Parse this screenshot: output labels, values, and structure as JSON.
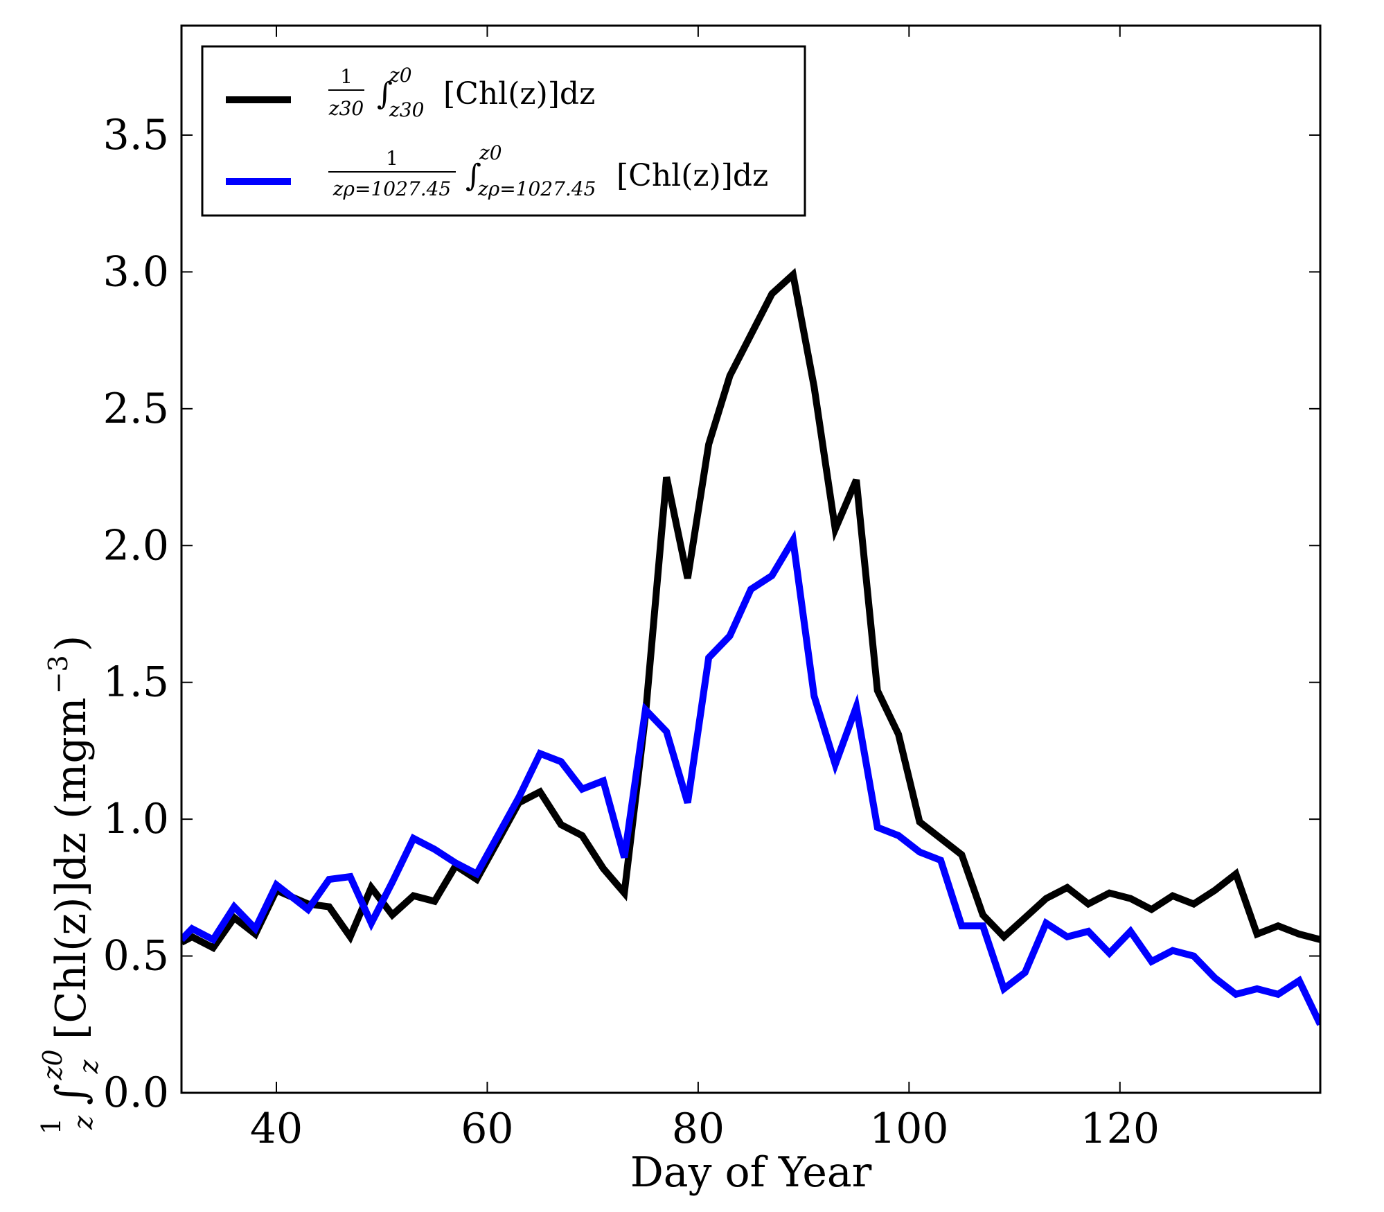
{
  "chart_data": {
    "type": "line",
    "xlabel": "Day of Year",
    "ylabel": {
      "frac_num": "1",
      "frac_den": "z",
      "integral": "∫",
      "upper_limit": "z0",
      "lower_limit": "z",
      "body": "[Chl(z)]dz (mgm",
      "superscript": "−3",
      "close": ")"
    },
    "xlim": [
      31,
      139
    ],
    "ylim": [
      0.0,
      3.9
    ],
    "xticks": [
      "40",
      "60",
      "80",
      "100",
      "120"
    ],
    "xtick_values": [
      40,
      60,
      80,
      100,
      120
    ],
    "yticks": [
      "0.0",
      "0.5",
      "1.0",
      "1.5",
      "2.0",
      "2.5",
      "3.0",
      "3.5"
    ],
    "ytick_values": [
      0.0,
      0.5,
      1.0,
      1.5,
      2.0,
      2.5,
      3.0,
      3.5
    ],
    "grid": false,
    "legend_position": "top-left",
    "series": [
      {
        "name": "1/z30 ∫z30^z0 [Chl(z)]dz",
        "legend": {
          "num": "1",
          "den": "z30",
          "upper": "z0",
          "lower": "z30",
          "body": "[Chl(z)]dz"
        },
        "color": "#000000",
        "x": [
          31,
          32,
          34,
          36,
          38,
          40,
          43,
          45,
          47,
          49,
          51,
          53,
          55,
          57,
          59,
          61,
          63,
          65,
          67,
          69,
          71,
          73,
          75,
          77,
          79,
          81,
          83,
          85,
          87,
          89,
          91,
          93,
          95,
          97,
          99,
          101,
          103,
          105,
          107,
          109,
          111,
          113,
          115,
          117,
          119,
          121,
          123,
          125,
          127,
          129,
          131,
          133,
          135,
          137,
          139
        ],
        "y": [
          0.55,
          0.57,
          0.53,
          0.64,
          0.58,
          0.74,
          0.69,
          0.68,
          0.57,
          0.75,
          0.65,
          0.72,
          0.7,
          0.83,
          0.78,
          0.92,
          1.06,
          1.1,
          0.98,
          0.94,
          0.82,
          0.73,
          1.38,
          2.25,
          1.88,
          2.37,
          2.62,
          2.77,
          2.92,
          2.99,
          2.58,
          2.06,
          2.24,
          1.47,
          1.31,
          0.99,
          0.93,
          0.87,
          0.65,
          0.57,
          0.64,
          0.71,
          0.75,
          0.69,
          0.73,
          0.71,
          0.67,
          0.72,
          0.69,
          0.74,
          0.8,
          0.58,
          0.61,
          0.58,
          0.56
        ]
      },
      {
        "name": "1/zρ=1027.45 ∫zρ=1027.45^z0 [Chl(z)]dz",
        "legend": {
          "num": "1",
          "den": "zρ=1027.45",
          "upper": "z0",
          "lower": "zρ=1027.45",
          "body": "[Chl(z)]dz"
        },
        "color": "#0000ff",
        "x": [
          31,
          32,
          34,
          36,
          38,
          40,
          43,
          45,
          47,
          49,
          51,
          53,
          55,
          57,
          59,
          61,
          63,
          65,
          67,
          69,
          71,
          73,
          75,
          77,
          79,
          81,
          83,
          85,
          87,
          89,
          91,
          93,
          95,
          97,
          99,
          101,
          103,
          105,
          107,
          109,
          111,
          113,
          115,
          117,
          119,
          121,
          123,
          125,
          127,
          129,
          131,
          133,
          135,
          137,
          139
        ],
        "y": [
          0.56,
          0.6,
          0.56,
          0.68,
          0.6,
          0.76,
          0.67,
          0.78,
          0.79,
          0.62,
          0.77,
          0.93,
          0.89,
          0.84,
          0.8,
          0.94,
          1.08,
          1.24,
          1.21,
          1.11,
          1.14,
          0.86,
          1.4,
          1.32,
          1.06,
          1.59,
          1.67,
          1.84,
          1.89,
          2.02,
          1.45,
          1.2,
          1.41,
          0.97,
          0.94,
          0.88,
          0.85,
          0.61,
          0.61,
          0.38,
          0.44,
          0.62,
          0.57,
          0.59,
          0.51,
          0.59,
          0.48,
          0.52,
          0.5,
          0.42,
          0.36,
          0.38,
          0.36,
          0.41,
          0.25
        ]
      }
    ]
  }
}
